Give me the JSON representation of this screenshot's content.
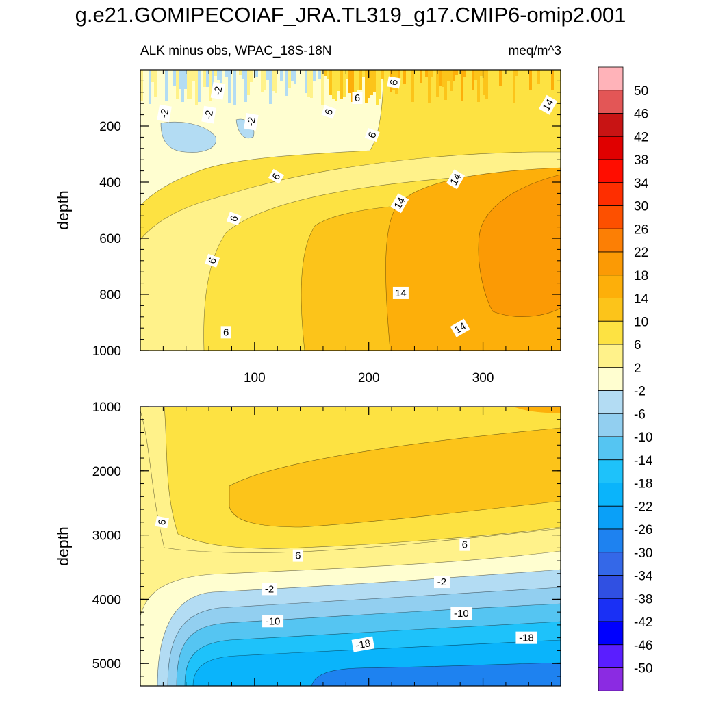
{
  "chart_data": {
    "type": "contour",
    "title": "g.e21.GOMIPECOIAF_JRA.TL319_g17.CMIP6-omip2.001",
    "left_subtitle": "ALK minus obs, WPAC_18S-18N",
    "right_subtitle": "meq/m^3",
    "xlim": [
      0,
      368
    ],
    "x_ticks": [
      "100",
      "200",
      "300"
    ],
    "x_tick_values": [
      100,
      200,
      300
    ],
    "panels": [
      {
        "name": "upper",
        "ylabel": "depth",
        "ylim": [
          0,
          1000
        ],
        "y_ticks": [
          "200",
          "400",
          "600",
          "800",
          "1000"
        ],
        "y_tick_values": [
          200,
          400,
          600,
          800,
          1000
        ],
        "labels": [
          {
            "text": "-2",
            "x": 68,
            "y": 75,
            "angle": -80
          },
          {
            "text": "-2",
            "x": 21,
            "y": 155,
            "angle": -80
          },
          {
            "text": "-2",
            "x": 60,
            "y": 160,
            "angle": -80
          },
          {
            "text": "-2",
            "x": 97,
            "y": 185,
            "angle": -80
          },
          {
            "text": "6",
            "x": 190,
            "y": 100,
            "angle": 0
          },
          {
            "text": "6",
            "x": 222,
            "y": 45,
            "angle": -80
          },
          {
            "text": "6",
            "x": 165,
            "y": 150,
            "angle": -70
          },
          {
            "text": "6",
            "x": 203,
            "y": 232,
            "angle": -70
          },
          {
            "text": "14",
            "x": 357,
            "y": 125,
            "angle": -60
          },
          {
            "text": "6",
            "x": 119,
            "y": 380,
            "angle": -60
          },
          {
            "text": "6",
            "x": 82,
            "y": 530,
            "angle": -70
          },
          {
            "text": "6",
            "x": 63,
            "y": 680,
            "angle": -70
          },
          {
            "text": "6",
            "x": 75,
            "y": 935,
            "angle": 0
          },
          {
            "text": "14",
            "x": 276,
            "y": 390,
            "angle": -60
          },
          {
            "text": "14",
            "x": 227,
            "y": 475,
            "angle": -60
          },
          {
            "text": "14",
            "x": 228,
            "y": 795,
            "angle": 0
          },
          {
            "text": "14",
            "x": 280,
            "y": 920,
            "angle": -30
          }
        ]
      },
      {
        "name": "lower",
        "ylabel": "depth",
        "ylim": [
          1000,
          5350
        ],
        "y_ticks": [
          "1000",
          "2000",
          "3000",
          "4000",
          "5000"
        ],
        "y_tick_values": [
          1000,
          2000,
          3000,
          4000,
          5000
        ],
        "labels": [
          {
            "text": "6",
            "x": 19,
            "y": 2800,
            "angle": -80
          },
          {
            "text": "6",
            "x": 138,
            "y": 3320,
            "angle": 0
          },
          {
            "text": "6",
            "x": 284,
            "y": 3150,
            "angle": 0
          },
          {
            "text": "-2",
            "x": 113,
            "y": 3840,
            "angle": 0
          },
          {
            "text": "-2",
            "x": 264,
            "y": 3730,
            "angle": 0
          },
          {
            "text": "-10",
            "x": 116,
            "y": 4340,
            "angle": 0
          },
          {
            "text": "-10",
            "x": 281,
            "y": 4220,
            "angle": 0
          },
          {
            "text": "-18",
            "x": 195,
            "y": 4700,
            "angle": -10
          },
          {
            "text": "-18",
            "x": 338,
            "y": 4600,
            "angle": 0
          }
        ]
      }
    ],
    "levels": [
      -50,
      -46,
      -42,
      -38,
      -34,
      -30,
      -26,
      -22,
      -18,
      -14,
      -10,
      -6,
      -2,
      2,
      6,
      10,
      14,
      18,
      22,
      26,
      30,
      34,
      38,
      42,
      46,
      50
    ],
    "colorbar_labels": [
      "50",
      "46",
      "42",
      "38",
      "34",
      "30",
      "26",
      "22",
      "18",
      "14",
      "10",
      "6",
      "2",
      "-2",
      "-6",
      "-10",
      "-14",
      "-18",
      "-22",
      "-26",
      "-30",
      "-34",
      "-38",
      "-42",
      "-46",
      "-50"
    ],
    "colors": [
      "#8b2be2",
      "#5a1eff",
      "#0000fe",
      "#1a30f5",
      "#3050e2",
      "#3468e8",
      "#1e82f0",
      "#0aa0f8",
      "#0ab4fb",
      "#1ec2fa",
      "#55c5f2",
      "#92cff0",
      "#b3dcf3",
      "#fffed0",
      "#fff28a",
      "#fde242",
      "#fcc41a",
      "#fdaf0a",
      "#fb9a05",
      "#fc7f05",
      "#fd5000",
      "#fe2e00",
      "#ff0d00",
      "#e00000",
      "#c81414",
      "#e35656",
      "#ffb3b9"
    ]
  }
}
